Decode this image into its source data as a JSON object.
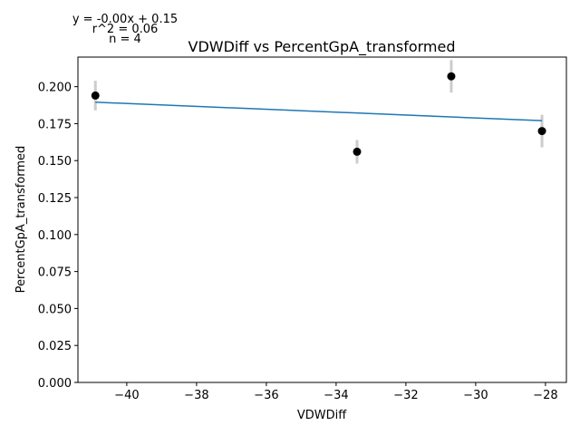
{
  "chart_data": {
    "type": "scatter",
    "title": "VDWDiff vs PercentGpA_transformed",
    "xlabel": "VDWDiff",
    "ylabel": "PercentGpA_transformed",
    "xlim": [
      -41.4,
      -27.4
    ],
    "ylim": [
      0.0,
      0.22
    ],
    "x_ticks": [
      -40,
      -38,
      -36,
      -34,
      -32,
      -30,
      -28
    ],
    "x_tick_labels": [
      "−40",
      "−38",
      "−36",
      "−34",
      "−32",
      "−30",
      "−28"
    ],
    "y_ticks": [
      0.0,
      0.025,
      0.05,
      0.075,
      0.1,
      0.125,
      0.15,
      0.175,
      0.2
    ],
    "y_tick_labels": [
      "0.000",
      "0.025",
      "0.050",
      "0.075",
      "0.100",
      "0.125",
      "0.150",
      "0.175",
      "0.200"
    ],
    "grid": false,
    "points": [
      {
        "x": -40.9,
        "y": 0.194,
        "err": 0.01
      },
      {
        "x": -33.4,
        "y": 0.156,
        "err": 0.008
      },
      {
        "x": -30.7,
        "y": 0.207,
        "err": 0.011
      },
      {
        "x": -28.1,
        "y": 0.17,
        "err": 0.011
      }
    ],
    "fit_line": {
      "x": [
        -40.9,
        -28.1
      ],
      "y": [
        0.1895,
        0.177
      ]
    },
    "annotations": [
      "y = -0.00x + 0.15",
      "r^2 = 0.06",
      "n = 4"
    ],
    "colors": {
      "points": "#000000",
      "errorbars": "#cccccc",
      "fit": "#1f77b4"
    }
  }
}
